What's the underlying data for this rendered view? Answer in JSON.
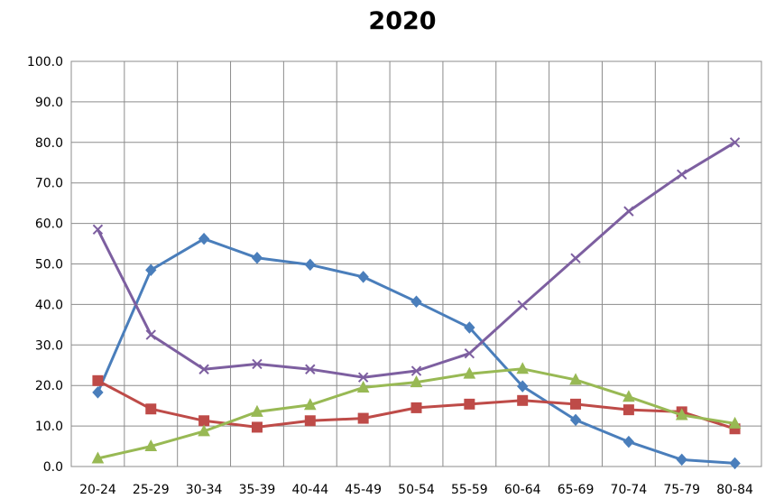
{
  "chart_data": {
    "type": "line",
    "title": "2020",
    "categories": [
      "20-24",
      "25-29",
      "30-34",
      "35-39",
      "40-44",
      "45-49",
      "50-54",
      "55-59",
      "60-64",
      "65-69",
      "70-74",
      "75-79",
      "80-84"
    ],
    "y_ticks": [
      "0.0",
      "10.0",
      "20.0",
      "30.0",
      "40.0",
      "50.0",
      "60.0",
      "70.0",
      "80.0",
      "90.0",
      "100.0"
    ],
    "ylim": [
      0,
      100
    ],
    "grid": true,
    "xlabel": "",
    "ylabel": "",
    "series": [
      {
        "marker": "diamond",
        "color": "#4a7ebb",
        "values": [
          18.3,
          48.5,
          56.2,
          51.5,
          49.8,
          46.8,
          40.7,
          34.3,
          19.8,
          11.5,
          6.1,
          1.7,
          0.8
        ]
      },
      {
        "marker": "square",
        "color": "#be4b48",
        "values": [
          21.2,
          14.2,
          11.3,
          9.7,
          11.3,
          11.9,
          14.5,
          15.4,
          16.3,
          15.4,
          14.0,
          13.5,
          9.3
        ]
      },
      {
        "marker": "triangle",
        "color": "#98b954",
        "values": [
          2.0,
          5.0,
          8.7,
          13.5,
          15.2,
          19.5,
          20.8,
          22.9,
          24.1,
          21.4,
          17.2,
          12.7,
          10.6
        ]
      },
      {
        "marker": "x",
        "color": "#7d5fa0",
        "values": [
          58.5,
          32.5,
          24.0,
          25.3,
          24.0,
          22.0,
          23.6,
          27.9,
          39.8,
          51.4,
          63.0,
          72.1,
          80.0
        ]
      }
    ]
  }
}
